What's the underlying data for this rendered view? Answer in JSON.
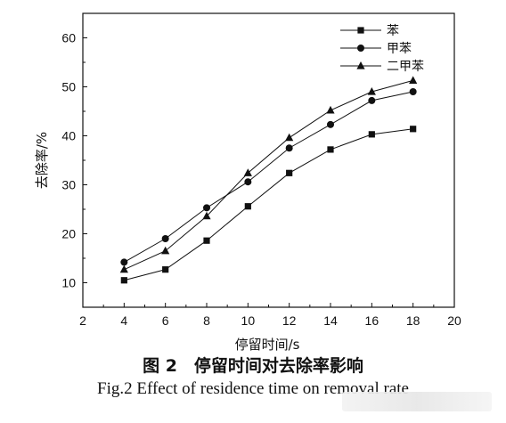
{
  "chart_data": {
    "type": "line",
    "xlabel": "停留时间/s",
    "ylabel": "去除率/%",
    "xlim": [
      2,
      20
    ],
    "ylim": [
      5,
      65
    ],
    "xticks": [
      2,
      4,
      6,
      8,
      10,
      12,
      14,
      16,
      18,
      20
    ],
    "yticks": [
      10,
      20,
      30,
      40,
      50,
      60
    ],
    "grid": false,
    "legend_position": "top-right",
    "x": [
      4,
      6,
      8,
      10,
      12,
      14,
      16,
      18
    ],
    "series": [
      {
        "name": "苯",
        "marker": "square",
        "values": [
          10.5,
          12.7,
          18.6,
          25.6,
          32.4,
          37.2,
          40.3,
          41.4
        ]
      },
      {
        "name": "甲苯",
        "marker": "circle",
        "values": [
          14.2,
          19.0,
          25.3,
          30.6,
          37.5,
          42.3,
          47.2,
          49.0
        ]
      },
      {
        "name": "二甲苯",
        "marker": "triangle",
        "values": [
          12.7,
          16.5,
          23.6,
          32.4,
          39.6,
          45.2,
          49.0,
          51.3
        ]
      }
    ]
  },
  "caption": {
    "zh": "图 2　停留时间对去除率影响",
    "en": "Fig.2    Effect of residence time on removal rate"
  }
}
